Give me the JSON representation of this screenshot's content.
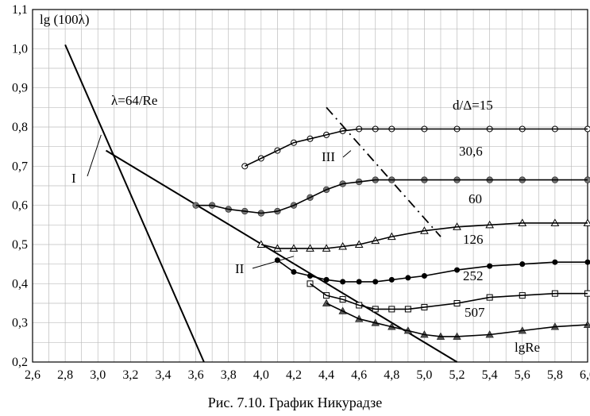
{
  "caption": "Рис. 7.10. График Никурадзе",
  "chart_data": {
    "type": "scatter",
    "title": "",
    "ylabel": "lg (100λ)",
    "xlabel": "lgRe",
    "xlim": [
      2.6,
      6.0
    ],
    "ylim": [
      0.2,
      1.1
    ],
    "grid": true,
    "x_ticks": [
      "2,6",
      "2,8",
      "3,0",
      "3,2",
      "3,4",
      "3,6",
      "3,8",
      "4,0",
      "4,2",
      "4,4",
      "4,6",
      "4,8",
      "5,0",
      "5,2",
      "5,4",
      "5,6",
      "5,8",
      "6,0"
    ],
    "y_ticks": [
      "0,2",
      "0,3",
      "0,4",
      "0,5",
      "0,6",
      "0,7",
      "0,8",
      "0,9",
      "1,0",
      "1,1"
    ],
    "laminar_line": {
      "label": "λ=64/Re",
      "points": [
        [
          2.8,
          1.01
        ],
        [
          3.65,
          0.2
        ]
      ]
    },
    "blasius_line": {
      "points": [
        [
          3.05,
          0.74
        ],
        [
          5.2,
          0.2
        ]
      ]
    },
    "region_labels": [
      "I",
      "II",
      "III"
    ],
    "series": [
      {
        "name": "d/Δ=15",
        "marker": "circle-open",
        "x": [
          3.9,
          4.0,
          4.1,
          4.2,
          4.3,
          4.4,
          4.5,
          4.6,
          4.7,
          4.8,
          5.0,
          5.2,
          5.4,
          5.6,
          5.8,
          6.0
        ],
        "y": [
          0.7,
          0.72,
          0.74,
          0.76,
          0.77,
          0.78,
          0.79,
          0.795,
          0.795,
          0.795,
          0.795,
          0.795,
          0.795,
          0.795,
          0.795,
          0.795
        ]
      },
      {
        "name": "30,6",
        "marker": "circle-gray",
        "x": [
          3.6,
          3.7,
          3.8,
          3.9,
          4.0,
          4.1,
          4.2,
          4.3,
          4.4,
          4.5,
          4.6,
          4.7,
          4.8,
          5.0,
          5.2,
          5.4,
          5.6,
          5.8,
          6.0
        ],
        "y": [
          0.6,
          0.6,
          0.59,
          0.585,
          0.58,
          0.585,
          0.6,
          0.62,
          0.64,
          0.655,
          0.66,
          0.665,
          0.665,
          0.665,
          0.665,
          0.665,
          0.665,
          0.665,
          0.665
        ]
      },
      {
        "name": "60",
        "marker": "triangle-open",
        "x": [
          4.0,
          4.1,
          4.2,
          4.3,
          4.4,
          4.5,
          4.6,
          4.7,
          4.8,
          5.0,
          5.2,
          5.4,
          5.6,
          5.8,
          6.0
        ],
        "y": [
          0.5,
          0.49,
          0.49,
          0.49,
          0.49,
          0.495,
          0.5,
          0.51,
          0.52,
          0.535,
          0.545,
          0.55,
          0.555,
          0.555,
          0.555
        ]
      },
      {
        "name": "126",
        "marker": "circle-black",
        "x": [
          4.1,
          4.2,
          4.3,
          4.4,
          4.5,
          4.6,
          4.7,
          4.8,
          4.9,
          5.0,
          5.2,
          5.4,
          5.6,
          5.8,
          6.0
        ],
        "y": [
          0.46,
          0.43,
          0.42,
          0.41,
          0.405,
          0.405,
          0.405,
          0.41,
          0.415,
          0.42,
          0.435,
          0.445,
          0.45,
          0.455,
          0.455
        ]
      },
      {
        "name": "252",
        "marker": "square-open",
        "x": [
          4.3,
          4.4,
          4.5,
          4.6,
          4.7,
          4.8,
          4.9,
          5.0,
          5.2,
          5.4,
          5.6,
          5.8,
          6.0
        ],
        "y": [
          0.4,
          0.37,
          0.36,
          0.345,
          0.335,
          0.335,
          0.335,
          0.34,
          0.35,
          0.365,
          0.37,
          0.375,
          0.375
        ]
      },
      {
        "name": "507",
        "marker": "triangle-dark",
        "x": [
          4.4,
          4.5,
          4.6,
          4.7,
          4.8,
          4.9,
          5.0,
          5.1,
          5.2,
          5.4,
          5.6,
          5.8,
          6.0
        ],
        "y": [
          0.35,
          0.33,
          0.31,
          0.3,
          0.29,
          0.28,
          0.27,
          0.265,
          0.265,
          0.27,
          0.28,
          0.29,
          0.295
        ]
      }
    ]
  }
}
